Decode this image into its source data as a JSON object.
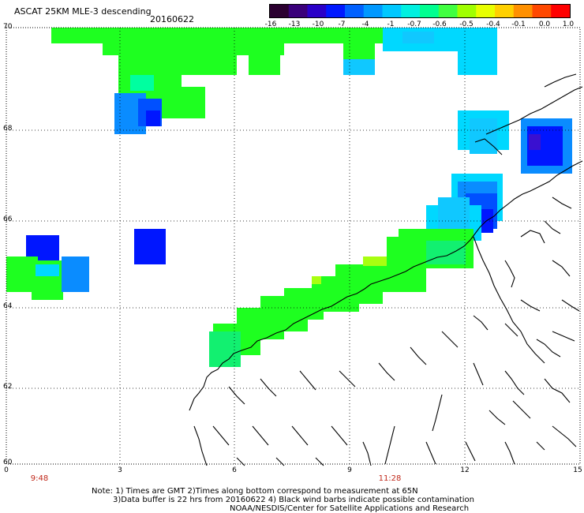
{
  "header": {
    "title": "ASCAT 25KM MLE-3 descending",
    "date": "20160622"
  },
  "colorbar": {
    "labels": [
      "-16",
      "-13",
      "-10",
      "-7",
      "-4",
      "-1",
      "-0.7",
      "-0.6",
      "-0.5",
      "-0.4",
      "-0.1",
      "0.0",
      "1.0"
    ],
    "colors": [
      "#2b0030",
      "#3a007a",
      "#2a00c8",
      "#0018ff",
      "#0060ff",
      "#0098ff",
      "#00c8ff",
      "#00f0e0",
      "#00ff90",
      "#40ff40",
      "#a0ff00",
      "#e8ff00",
      "#ffd000",
      "#ff9000",
      "#ff4800",
      "#ff0000"
    ]
  },
  "map": {
    "lat_labels": [
      "70",
      "68",
      "66",
      "64",
      "62",
      "60"
    ],
    "lon_labels": [
      "0",
      "3",
      "6",
      "9",
      "12",
      "15"
    ],
    "time_labels": [
      "9:48",
      "11:28"
    ]
  },
  "notes": {
    "line1": "Note: 1) Times are GMT 2)Times along bottom correspond to measurement at 65N",
    "line2": "3)Data buffer is 22 hrs from 20160622 4) Black wind barbs indicate possible contamination",
    "line3": "NOAA/NESDIS/Center for Satellite Applications and Research"
  }
}
